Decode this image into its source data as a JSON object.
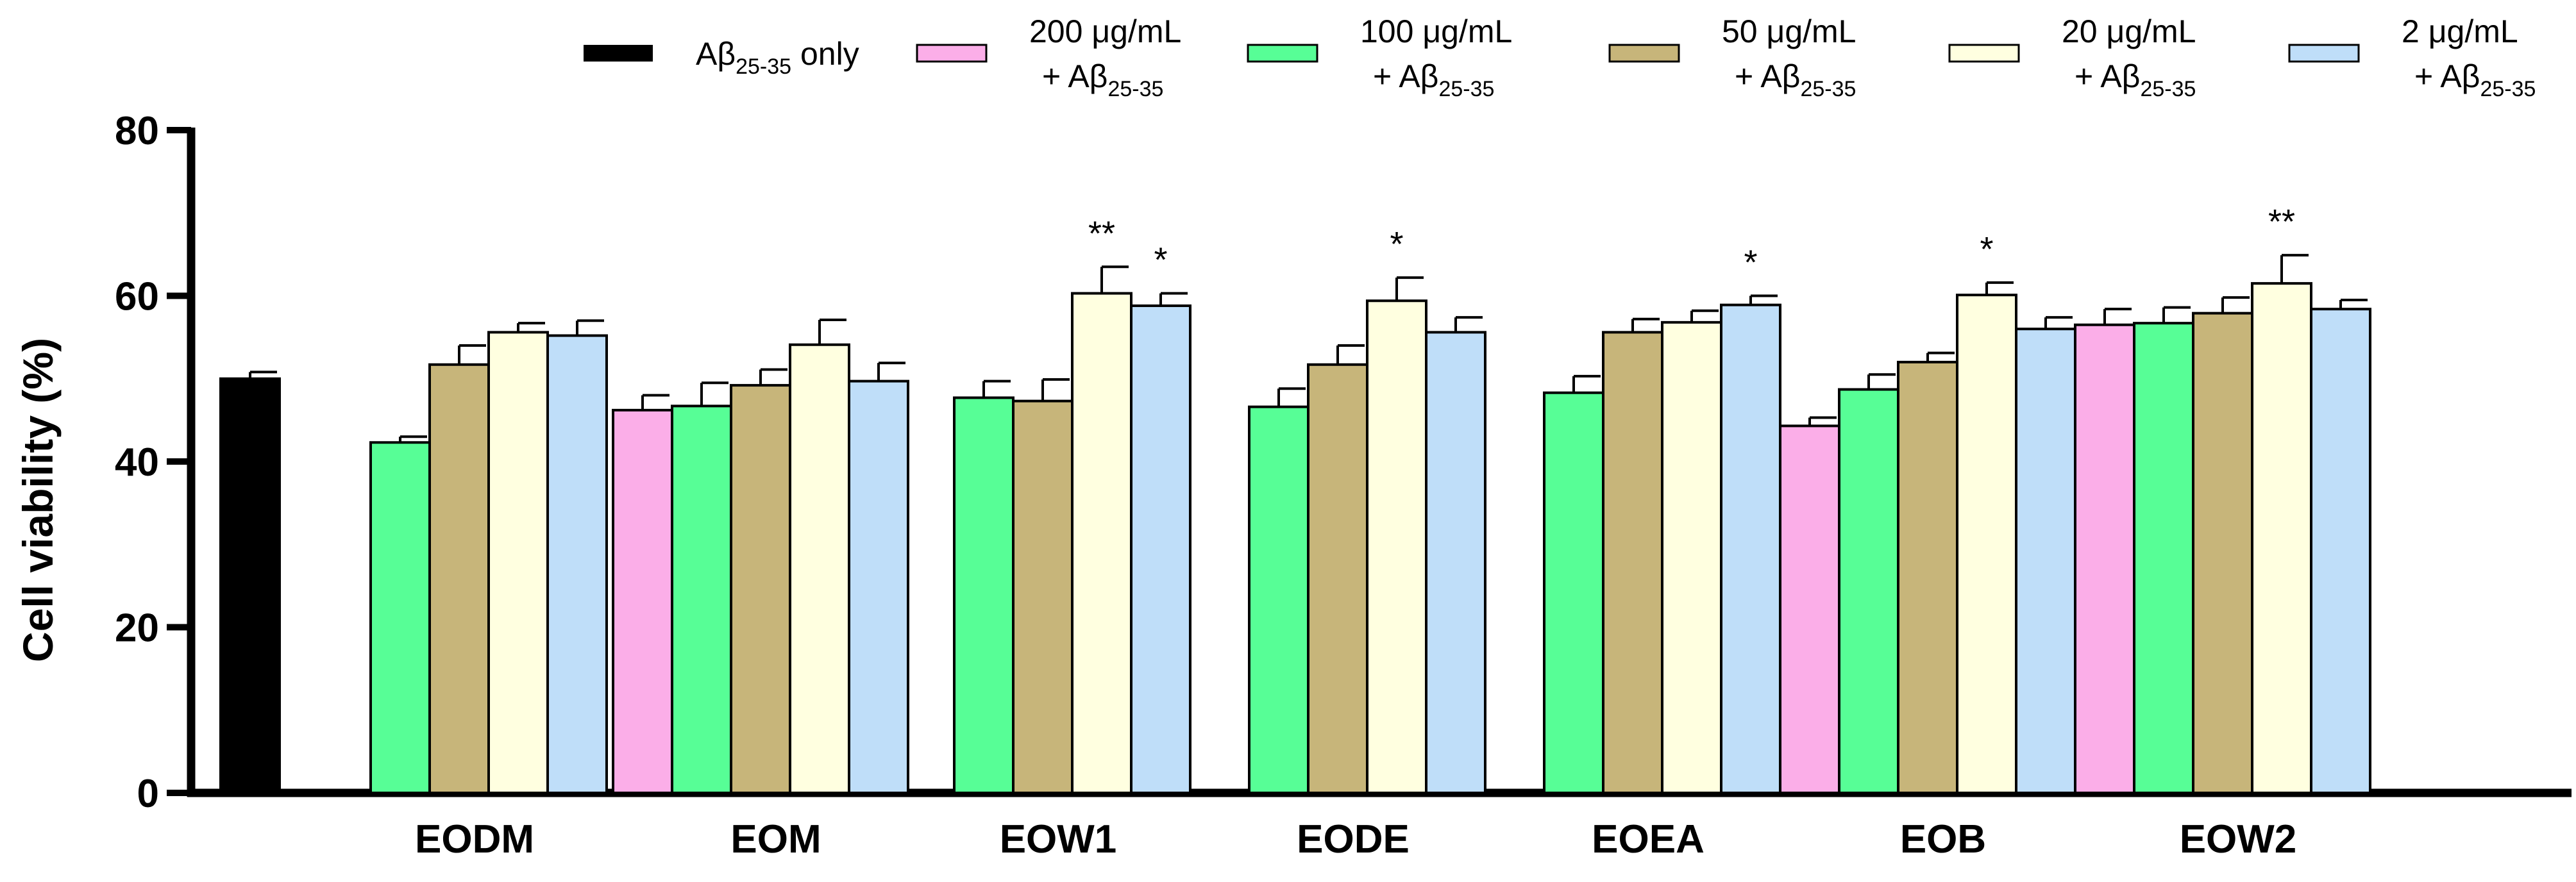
{
  "chart_data": {
    "type": "bar",
    "ylabel": "Cell viability (%)",
    "xlabel": "",
    "ylim": [
      0,
      80
    ],
    "yticks": [
      "0",
      "20",
      "40",
      "60",
      "80"
    ],
    "grid": false,
    "legend_position": "top",
    "legend": [
      {
        "line1": "Aβ",
        "sub": "25-35",
        "suffix": " only",
        "color": "#000000",
        "kind": "control"
      },
      {
        "line1": "200 μg/mL",
        "line2": "+ Aβ",
        "sub": "25-35",
        "color": "#FBAEE8"
      },
      {
        "line1": "100 μg/mL",
        "line2": "+ Aβ",
        "sub": "25-35",
        "color": "#57FE96"
      },
      {
        "line1": "50 μg/mL",
        "line2": "+ Aβ",
        "sub": "25-35",
        "color": "#C7B57A"
      },
      {
        "line1": "20 μg/mL",
        "line2": "+ Aβ",
        "sub": "25-35",
        "color": "#FFFFE0"
      },
      {
        "line1": "2 μg/mL",
        "line2": "+ Aβ",
        "sub": "25-35",
        "color": "#BFDEF9"
      }
    ],
    "control": {
      "value": 50.0,
      "error": 0.8
    },
    "groups": [
      {
        "label": "EODM",
        "bars": [
          {
            "series": 2,
            "value": 42.3,
            "error": 0.7
          },
          {
            "series": 3,
            "value": 51.7,
            "error": 2.3
          },
          {
            "series": 4,
            "value": 55.6,
            "error": 1.1
          },
          {
            "series": 5,
            "value": 55.2,
            "error": 1.8
          }
        ]
      },
      {
        "label": "EOM",
        "bars": [
          {
            "series": 1,
            "value": 46.2,
            "error": 1.8
          },
          {
            "series": 2,
            "value": 46.7,
            "error": 2.8
          },
          {
            "series": 3,
            "value": 49.2,
            "error": 1.9
          },
          {
            "series": 4,
            "value": 54.1,
            "error": 3.0
          },
          {
            "series": 5,
            "value": 49.7,
            "error": 2.2
          }
        ]
      },
      {
        "label": "EOW1",
        "bars": [
          {
            "series": 2,
            "value": 47.7,
            "error": 2.0
          },
          {
            "series": 3,
            "value": 47.3,
            "error": 2.6
          },
          {
            "series": 4,
            "value": 60.3,
            "error": 3.2,
            "annot": "**"
          },
          {
            "series": 5,
            "value": 58.8,
            "error": 1.5,
            "annot": "*"
          }
        ]
      },
      {
        "label": "EODE",
        "bars": [
          {
            "series": 2,
            "value": 46.6,
            "error": 2.2
          },
          {
            "series": 3,
            "value": 51.7,
            "error": 2.3
          },
          {
            "series": 4,
            "value": 59.4,
            "error": 2.8,
            "annot": "*"
          },
          {
            "series": 5,
            "value": 55.6,
            "error": 1.8
          }
        ]
      },
      {
        "label": "EOEA",
        "bars": [
          {
            "series": 2,
            "value": 48.3,
            "error": 2.0
          },
          {
            "series": 3,
            "value": 55.6,
            "error": 1.6
          },
          {
            "series": 4,
            "value": 56.8,
            "error": 1.4
          },
          {
            "series": 5,
            "value": 58.9,
            "error": 1.1,
            "annot": "*"
          }
        ]
      },
      {
        "label": "EOB",
        "bars": [
          {
            "series": 1,
            "value": 44.3,
            "error": 1.0
          },
          {
            "series": 2,
            "value": 48.7,
            "error": 1.8
          },
          {
            "series": 3,
            "value": 52.0,
            "error": 1.1
          },
          {
            "series": 4,
            "value": 60.1,
            "error": 1.5,
            "annot": "*"
          },
          {
            "series": 5,
            "value": 56.0,
            "error": 1.4
          }
        ]
      },
      {
        "label": "EOW2",
        "bars": [
          {
            "series": 1,
            "value": 56.5,
            "error": 1.9
          },
          {
            "series": 2,
            "value": 56.7,
            "error": 1.9
          },
          {
            "series": 3,
            "value": 57.9,
            "error": 1.9
          },
          {
            "series": 4,
            "value": 61.5,
            "error": 3.4,
            "annot": "**"
          },
          {
            "series": 5,
            "value": 58.4,
            "error": 1.1
          }
        ]
      }
    ]
  }
}
